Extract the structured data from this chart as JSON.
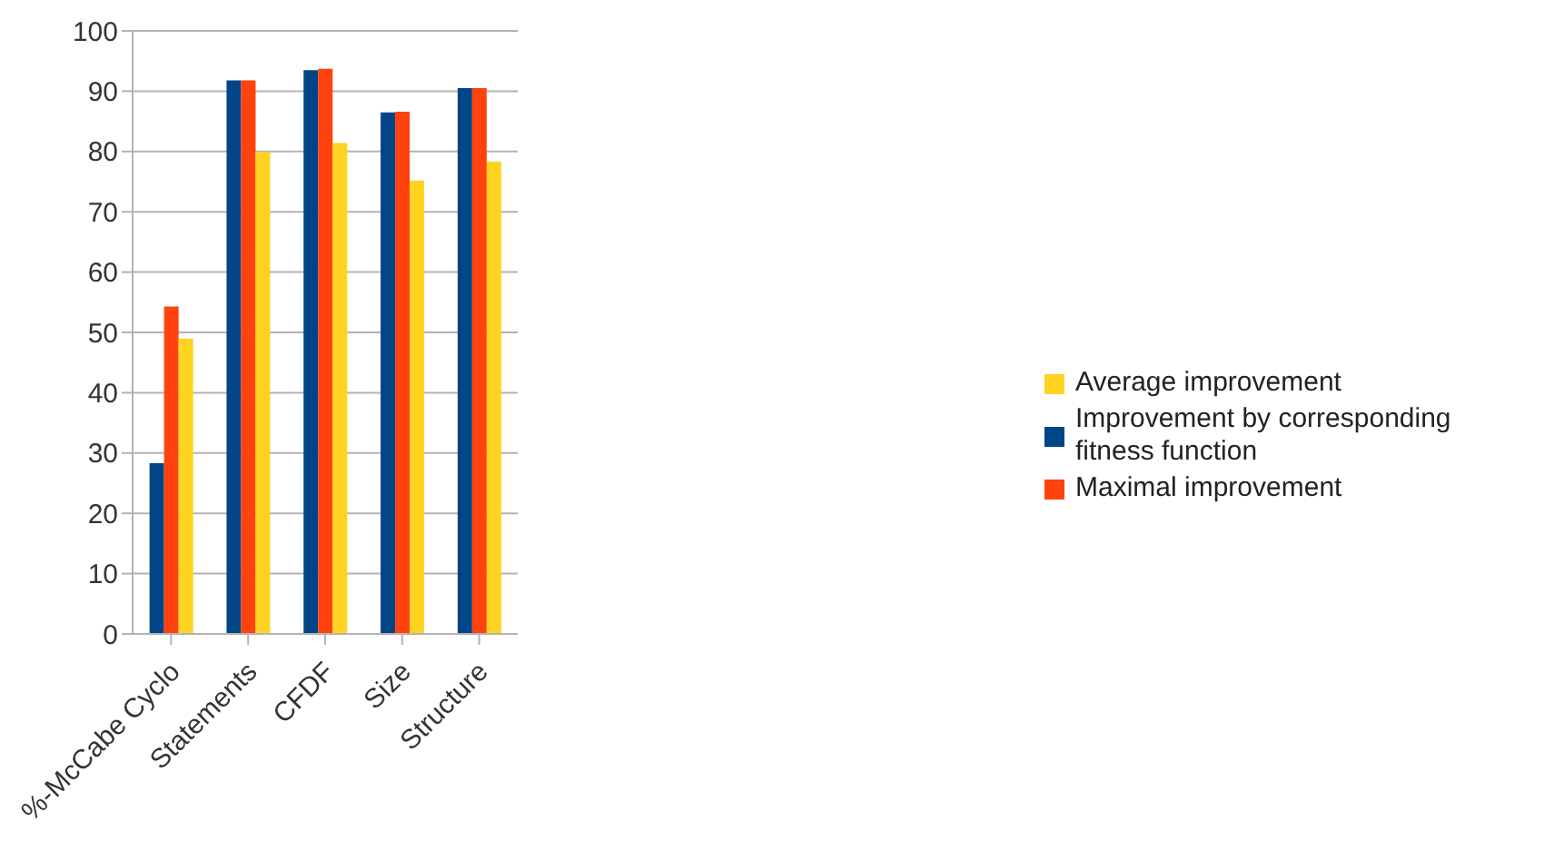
{
  "chart_data": {
    "type": "bar",
    "categories": [
      "%-McCabe Cyclo",
      "Statements",
      "CFDF",
      "Size",
      "Structure"
    ],
    "series": [
      {
        "name": "Improvement by corresponding fitness function",
        "color": "#004586",
        "values": [
          28.3,
          91.8,
          93.5,
          86.5,
          90.5
        ]
      },
      {
        "name": "Maximal improvement",
        "color": "#ff420e",
        "values": [
          54.3,
          91.8,
          93.7,
          86.6,
          90.5
        ]
      },
      {
        "name": "Average improvement",
        "color": "#ffd320",
        "values": [
          49,
          79.9,
          81.4,
          75.2,
          78.3
        ]
      }
    ],
    "ylim": [
      0,
      100
    ],
    "yticks": [
      0,
      10,
      20,
      30,
      40,
      50,
      60,
      70,
      80,
      90,
      100
    ],
    "grid": "y",
    "legend": "right"
  }
}
